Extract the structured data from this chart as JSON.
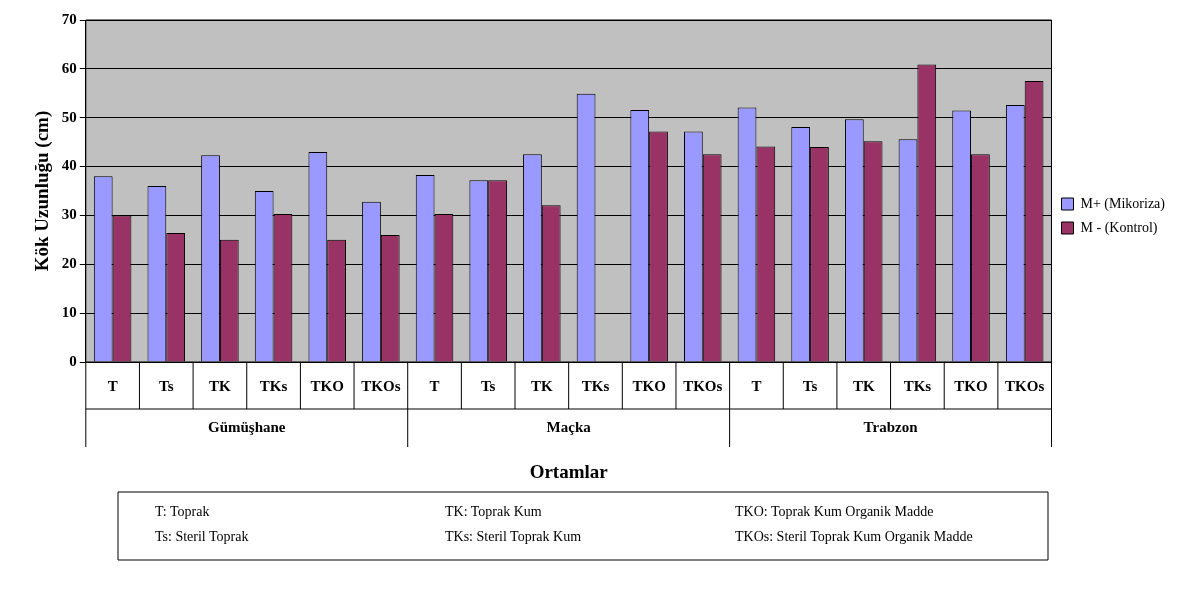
{
  "chart_data": {
    "type": "bar",
    "xlabel": "Ortamlar",
    "ylabel": "Kök Uzunluğu (cm)",
    "categories": [
      "T",
      "Ts",
      "TK",
      "TKs",
      "TKO",
      "TKOs",
      "T",
      "Ts",
      "TK",
      "TKs",
      "TKO",
      "TKOs",
      "T",
      "Ts",
      "TK",
      "TKs",
      "TKO",
      "TKOs"
    ],
    "series": [
      {
        "name": "M+ (Mikoriza)",
        "color": "#9999ff",
        "values": [
          38,
          36,
          42.3,
          35,
          43,
          32.8,
          38.3,
          37.2,
          42.5,
          54.9,
          51.6,
          47.2,
          52.1,
          48.1,
          49.7,
          45.6,
          51.5,
          52.6
        ]
      },
      {
        "name": "M - (Kontrol)",
        "color": "#993366",
        "values": [
          30,
          26.4,
          25,
          30.3,
          25,
          26,
          30.3,
          37.2,
          32.1,
          null,
          47.2,
          42.5,
          44.1,
          44,
          45.2,
          60.9,
          42.5,
          57.5
        ]
      }
    ],
    "annotations": [
      "Gümüşhane",
      "Maçka",
      "Trabzon",
      "T: Toprak",
      "Ts: Steril Toprak",
      "TK: Toprak Kum",
      "TKs: Steril Toprak Kum",
      "TKO: Toprak Kum Organik Madde",
      "TKOs: Steril Toprak Kum Organik Madde"
    ],
    "ylim": [
      0,
      70
    ],
    "yticks": [
      0,
      10,
      20,
      30,
      40,
      50,
      60,
      70
    ],
    "grid": "y",
    "legend": "right"
  }
}
